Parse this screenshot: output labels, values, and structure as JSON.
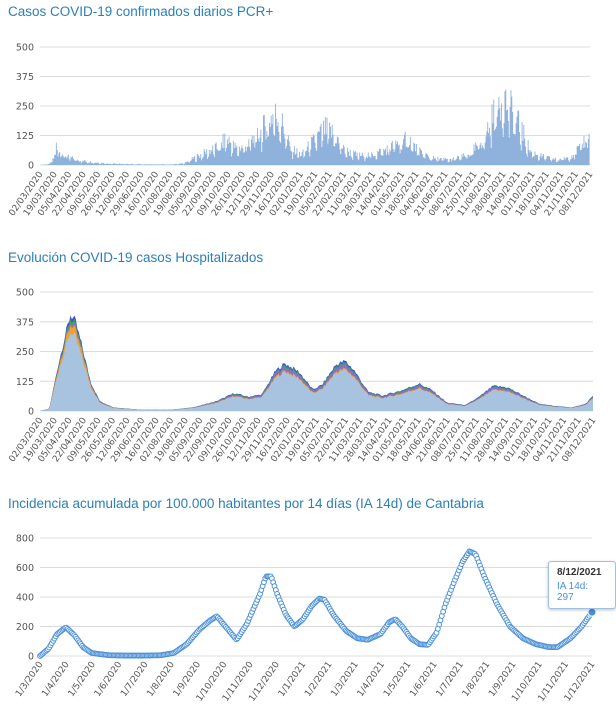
{
  "charts": [
    {
      "title": "Casos COVID-19 confirmados diarios PCR+"
    },
    {
      "title": "Evolución COVID-19 casos  Hospitalizados"
    },
    {
      "title": "Incidencia acumulada por 100.000 habitantes por 14 días (IA 14d) de Cantabria",
      "tooltip": {
        "date": "8/12/2021",
        "label": "IA 14d: 297"
      }
    }
  ],
  "colors": {
    "title": "#2c7fb8",
    "bars": "#8fb2dc",
    "hosp_fill": "#a8c3e0",
    "hosp_blue": "#3b4ee0",
    "hosp_green": "#3aa64a",
    "hosp_orange": "#f0a030",
    "ia_line": "#4a90d9"
  },
  "chart_data": [
    {
      "type": "bar",
      "ylim": [
        0,
        500
      ],
      "yticks": [
        0,
        125,
        250,
        375,
        500
      ],
      "x_tick_labels": [
        "02/03/2020",
        "19/03/2020",
        "05/04/2020",
        "22/04/2020",
        "09/05/2020",
        "26/05/2020",
        "12/06/2020",
        "29/06/2020",
        "16/07/2020",
        "02/08/2020",
        "19/08/2020",
        "05/09/2020",
        "22/09/2020",
        "09/10/2020",
        "26/10/2020",
        "12/11/2020",
        "29/11/2020",
        "16/12/2020",
        "02/01/2021",
        "19/01/2021",
        "05/02/2021",
        "22/02/2021",
        "11/03/2021",
        "28/03/2021",
        "14/04/2021",
        "01/05/2021",
        "18/05/2021",
        "04/06/2021",
        "21/06/2021",
        "08/07/2021",
        "25/07/2021",
        "11/08/2021",
        "28/08/2021",
        "14/09/2021",
        "01/10/2021",
        "18/10/2021",
        "04/11/2021",
        "21/11/2021",
        "08/12/2021"
      ],
      "envelope": [
        [
          0,
          0
        ],
        [
          10,
          5
        ],
        [
          17,
          60
        ],
        [
          18,
          175
        ],
        [
          20,
          80
        ],
        [
          30,
          45
        ],
        [
          45,
          25
        ],
        [
          60,
          15
        ],
        [
          75,
          8
        ],
        [
          100,
          5
        ],
        [
          120,
          4
        ],
        [
          140,
          3
        ],
        [
          155,
          10
        ],
        [
          165,
          40
        ],
        [
          180,
          80
        ],
        [
          190,
          100
        ],
        [
          200,
          155
        ],
        [
          210,
          95
        ],
        [
          220,
          110
        ],
        [
          235,
          180
        ],
        [
          250,
          300
        ],
        [
          258,
          260
        ],
        [
          268,
          100
        ],
        [
          280,
          60
        ],
        [
          295,
          150
        ],
        [
          305,
          210
        ],
        [
          315,
          180
        ],
        [
          325,
          90
        ],
        [
          340,
          55
        ],
        [
          355,
          60
        ],
        [
          370,
          90
        ],
        [
          385,
          130
        ],
        [
          395,
          150
        ],
        [
          405,
          80
        ],
        [
          420,
          40
        ],
        [
          440,
          30
        ],
        [
          460,
          60
        ],
        [
          475,
          150
        ],
        [
          488,
          320
        ],
        [
          495,
          415
        ],
        [
          505,
          310
        ],
        [
          515,
          210
        ],
        [
          525,
          80
        ],
        [
          540,
          45
        ],
        [
          555,
          30
        ],
        [
          568,
          50
        ],
        [
          580,
          110
        ],
        [
          585,
          170
        ],
        [
          587,
          220
        ],
        [
          588,
          150
        ]
      ]
    },
    {
      "type": "area",
      "ylim": [
        0,
        500
      ],
      "yticks": [
        0,
        125,
        250,
        375,
        500
      ],
      "x_tick_labels": [
        "02/03/2020",
        "19/03/2020",
        "05/04/2020",
        "22/04/2020",
        "09/05/2020",
        "26/05/2020",
        "12/06/2020",
        "29/06/2020",
        "16/07/2020",
        "02/08/2020",
        "19/08/2020",
        "05/09/2020",
        "22/09/2020",
        "09/10/2020",
        "26/10/2020",
        "12/11/2020",
        "29/11/2020",
        "16/12/2020",
        "02/01/2021",
        "19/01/2021",
        "05/02/2021",
        "22/02/2021",
        "11/03/2021",
        "28/03/2021",
        "14/04/2021",
        "01/05/2021",
        "18/05/2021",
        "04/06/2021",
        "21/06/2021",
        "08/07/2021",
        "25/07/2021",
        "11/08/2021",
        "28/08/2021",
        "14/09/2021",
        "01/10/2021",
        "18/10/2021",
        "04/11/2021",
        "21/11/2021",
        "08/12/2021"
      ],
      "total": [
        [
          0,
          0
        ],
        [
          10,
          10
        ],
        [
          20,
          200
        ],
        [
          28,
          330
        ],
        [
          33,
          405
        ],
        [
          38,
          380
        ],
        [
          45,
          280
        ],
        [
          55,
          120
        ],
        [
          65,
          40
        ],
        [
          80,
          15
        ],
        [
          110,
          5
        ],
        [
          140,
          5
        ],
        [
          165,
          15
        ],
        [
          190,
          40
        ],
        [
          210,
          75
        ],
        [
          225,
          60
        ],
        [
          240,
          70
        ],
        [
          255,
          170
        ],
        [
          265,
          200
        ],
        [
          280,
          165
        ],
        [
          295,
          90
        ],
        [
          305,
          110
        ],
        [
          320,
          195
        ],
        [
          330,
          210
        ],
        [
          340,
          170
        ],
        [
          355,
          80
        ],
        [
          370,
          65
        ],
        [
          390,
          85
        ],
        [
          410,
          115
        ],
        [
          425,
          85
        ],
        [
          440,
          35
        ],
        [
          460,
          25
        ],
        [
          475,
          60
        ],
        [
          490,
          105
        ],
        [
          505,
          100
        ],
        [
          520,
          70
        ],
        [
          540,
          30
        ],
        [
          560,
          20
        ],
        [
          575,
          15
        ],
        [
          590,
          30
        ],
        [
          598,
          65
        ]
      ]
    },
    {
      "type": "scatter",
      "ylim": [
        0,
        800
      ],
      "yticks": [
        0,
        200,
        400,
        600,
        800
      ],
      "x_tick_labels": [
        "1/3/2020",
        "1/4/2020",
        "1/5/2020",
        "1/6/2020",
        "1/7/2020",
        "1/8/2020",
        "1/9/2020",
        "1/10/2020",
        "1/11/2020",
        "1/12/2020",
        "1/1/2021",
        "1/2/2021",
        "1/3/2021",
        "1/4/2021",
        "1/5/2021",
        "1/6/2021",
        "1/7/2021",
        "1/8/2021",
        "1/9/2021",
        "1/10/2021",
        "1/11/2021",
        "1/12/2021"
      ],
      "series": [
        {
          "name": "IA 14d",
          "points": [
            [
              0,
              0
            ],
            [
              10,
              50
            ],
            [
              20,
              150
            ],
            [
              30,
              195
            ],
            [
              40,
              140
            ],
            [
              50,
              60
            ],
            [
              60,
              20
            ],
            [
              80,
              5
            ],
            [
              100,
              3
            ],
            [
              120,
              3
            ],
            [
              140,
              5
            ],
            [
              155,
              20
            ],
            [
              170,
              80
            ],
            [
              185,
              180
            ],
            [
              197,
              240
            ],
            [
              205,
              270
            ],
            [
              215,
              200
            ],
            [
              228,
              110
            ],
            [
              240,
              220
            ],
            [
              255,
              420
            ],
            [
              262,
              540
            ],
            [
              268,
              540
            ],
            [
              275,
              420
            ],
            [
              285,
              280
            ],
            [
              295,
              200
            ],
            [
              305,
              250
            ],
            [
              315,
              340
            ],
            [
              324,
              390
            ],
            [
              330,
              380
            ],
            [
              340,
              280
            ],
            [
              355,
              170
            ],
            [
              368,
              120
            ],
            [
              380,
              110
            ],
            [
              395,
              150
            ],
            [
              405,
              230
            ],
            [
              412,
              250
            ],
            [
              420,
              200
            ],
            [
              430,
              120
            ],
            [
              440,
              80
            ],
            [
              450,
              75
            ],
            [
              460,
              160
            ],
            [
              470,
              350
            ],
            [
              480,
              500
            ],
            [
              490,
              640
            ],
            [
              498,
              710
            ],
            [
              505,
              690
            ],
            [
              515,
              540
            ],
            [
              530,
              350
            ],
            [
              545,
              200
            ],
            [
              560,
              120
            ],
            [
              575,
              80
            ],
            [
              590,
              60
            ],
            [
              600,
              60
            ],
            [
              615,
              120
            ],
            [
              628,
              200
            ],
            [
              640,
              297
            ]
          ]
        }
      ]
    }
  ]
}
